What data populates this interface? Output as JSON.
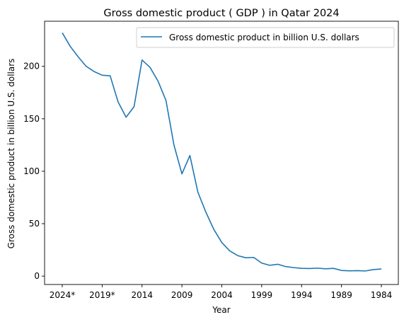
{
  "chart_data": {
    "type": "line",
    "title": "Gross domestic product ( GDP ) in Qatar 2024",
    "xlabel": "Year",
    "ylabel": "Gross domestic product in billion U.S. dollars",
    "x_order": "descending",
    "x_ticks": [
      "2024*",
      "2019*",
      "2014",
      "2009",
      "2004",
      "1999",
      "1994",
      "1989",
      "1984"
    ],
    "y_ticks": [
      0,
      50,
      100,
      150,
      200
    ],
    "ylim": [
      -8,
      243
    ],
    "grid": false,
    "legend_position": "top-right",
    "series": [
      {
        "name": "Gross domestic product in billion U.S. dollars",
        "color": "#1f77b4",
        "x": [
          2024,
          2023,
          2022,
          2021,
          2020,
          2019,
          2018,
          2017,
          2016,
          2015,
          2014,
          2013,
          2012,
          2011,
          2010,
          2009,
          2008,
          2007,
          2006,
          2005,
          2004,
          2003,
          2002,
          2001,
          2000,
          1999,
          1998,
          1997,
          1996,
          1995,
          1994,
          1993,
          1992,
          1991,
          1990,
          1989,
          1988,
          1987,
          1986,
          1985,
          1984
        ],
        "values": [
          232,
          219,
          209,
          200,
          195,
          191.5,
          191,
          166,
          151.5,
          161.5,
          206,
          199,
          186,
          167.5,
          125,
          97.5,
          115,
          80,
          61,
          44.5,
          32,
          24,
          19.5,
          17.5,
          17.8,
          12.4,
          10.3,
          11.3,
          9.1,
          8.1,
          7.4,
          7.2,
          7.6,
          7.0,
          7.4,
          5.4,
          5.0,
          5.2,
          4.9,
          6.2,
          6.8
        ]
      }
    ]
  }
}
